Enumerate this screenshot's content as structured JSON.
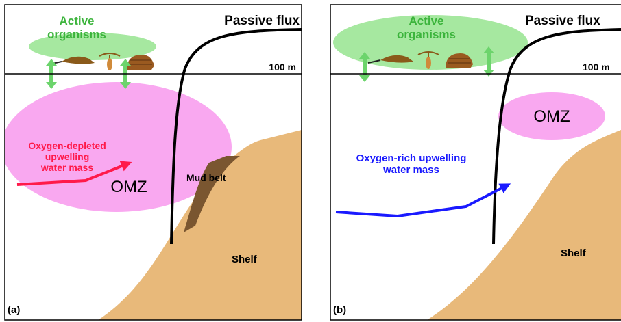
{
  "panels": [
    {
      "tag": "(a)",
      "active": [
        "Active",
        "organisms"
      ],
      "passive": "Passive flux",
      "depth": "100 m",
      "water": [
        "Oxygen-depleted",
        "upwelling",
        "water mass"
      ],
      "omz": "OMZ",
      "mud": "Mud belt",
      "shelf": "Shelf"
    },
    {
      "tag": "(b)",
      "active": [
        "Active",
        "organisms"
      ],
      "passive": "Passive flux",
      "depth": "100 m",
      "water": [
        "Oxygen-rich upwelling",
        "water mass"
      ],
      "omz": "OMZ",
      "shelf": "Shelf"
    }
  ]
}
